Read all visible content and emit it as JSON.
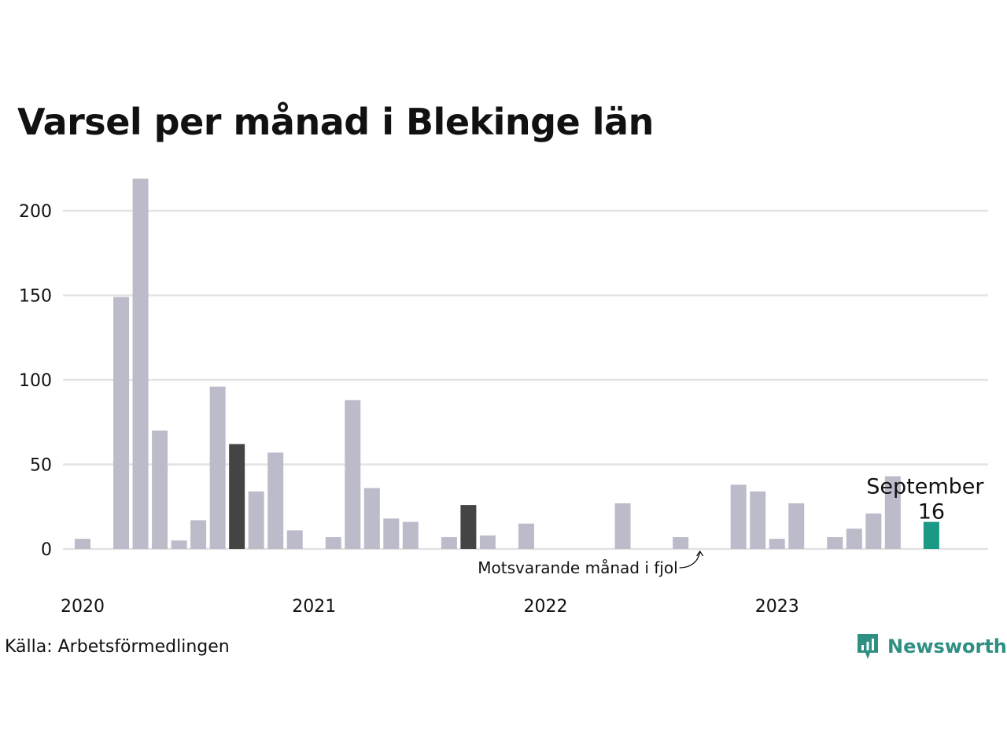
{
  "title": "Varsel per månad i Blekinge län",
  "source": "Källa: Arbetsförmedlingen",
  "brand": "Newsworthy",
  "colors": {
    "bar_default": "#bcbbc9",
    "bar_same_month_last_years": "#444444",
    "bar_current": "#1a9985",
    "grid": "#e3e3e3",
    "brand": "#2f8f82"
  },
  "chart_data": {
    "type": "bar",
    "title": "Varsel per månad i Blekinge län",
    "xlabel": "",
    "ylabel": "",
    "ylim": [
      0,
      220
    ],
    "yticks": [
      0,
      50,
      100,
      150,
      200
    ],
    "grid": true,
    "year_labels": [
      "2020",
      "2021",
      "2022",
      "2023"
    ],
    "categories": [
      "2020-01",
      "2020-02",
      "2020-03",
      "2020-04",
      "2020-05",
      "2020-06",
      "2020-07",
      "2020-08",
      "2020-09",
      "2020-10",
      "2020-11",
      "2020-12",
      "2021-01",
      "2021-02",
      "2021-03",
      "2021-04",
      "2021-05",
      "2021-06",
      "2021-07",
      "2021-08",
      "2021-09",
      "2021-10",
      "2021-11",
      "2021-12",
      "2022-01",
      "2022-02",
      "2022-03",
      "2022-04",
      "2022-05",
      "2022-06",
      "2022-07",
      "2022-08",
      "2022-09",
      "2022-10",
      "2022-11",
      "2022-12",
      "2023-01",
      "2023-02",
      "2023-03",
      "2023-04",
      "2023-05",
      "2023-06",
      "2023-07",
      "2023-08",
      "2023-09"
    ],
    "values": [
      6,
      0,
      149,
      219,
      70,
      5,
      17,
      96,
      62,
      34,
      57,
      11,
      0,
      7,
      88,
      36,
      18,
      16,
      0,
      7,
      26,
      8,
      0,
      15,
      0,
      0,
      0,
      0,
      27,
      0,
      0,
      7,
      0,
      0,
      38,
      34,
      6,
      27,
      0,
      7,
      12,
      21,
      43,
      0,
      16
    ],
    "highlight_same_month": [
      8,
      20
    ],
    "highlight_current": 44,
    "annotations": {
      "current_month": "September",
      "current_value": "16",
      "last_year_note": "Motsvarande månad i fjol"
    }
  }
}
